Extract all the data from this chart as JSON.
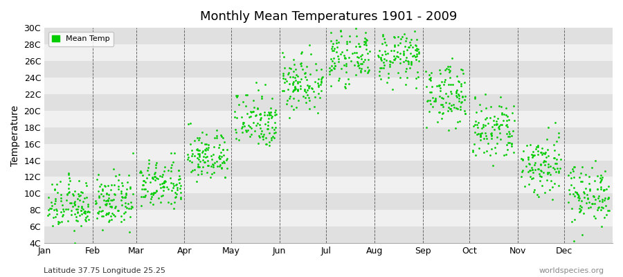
{
  "title": "Monthly Mean Temperatures 1901 - 2009",
  "ylabel": "Temperature",
  "xlabel_label": "Latitude 37.75 Longitude 25.25",
  "watermark": "worldspecies.org",
  "legend_label": "Mean Temp",
  "dot_color": "#00cc00",
  "background_color": "#ebebeb",
  "band_colors": [
    "#e0e0e0",
    "#f0f0f0"
  ],
  "ylim": [
    4,
    30
  ],
  "ytick_labels": [
    "4C",
    "6C",
    "8C",
    "10C",
    "12C",
    "14C",
    "16C",
    "18C",
    "20C",
    "22C",
    "24C",
    "26C",
    "28C",
    "30C"
  ],
  "ytick_values": [
    4,
    6,
    8,
    10,
    12,
    14,
    16,
    18,
    20,
    22,
    24,
    26,
    28,
    30
  ],
  "months": [
    "Jan",
    "Feb",
    "Mar",
    "Apr",
    "May",
    "Jun",
    "Jul",
    "Aug",
    "Sep",
    "Oct",
    "Nov",
    "Dec"
  ],
  "mean_temps": [
    8.5,
    9.0,
    11.0,
    14.5,
    19.0,
    23.5,
    26.5,
    26.5,
    22.0,
    17.5,
    13.5,
    10.0
  ],
  "std_temps": [
    1.5,
    1.5,
    1.5,
    1.5,
    1.8,
    1.8,
    1.5,
    1.5,
    1.8,
    2.0,
    2.0,
    1.8
  ],
  "n_years": 109,
  "month_days": [
    31,
    28,
    31,
    30,
    31,
    30,
    31,
    31,
    30,
    31,
    30,
    31
  ]
}
